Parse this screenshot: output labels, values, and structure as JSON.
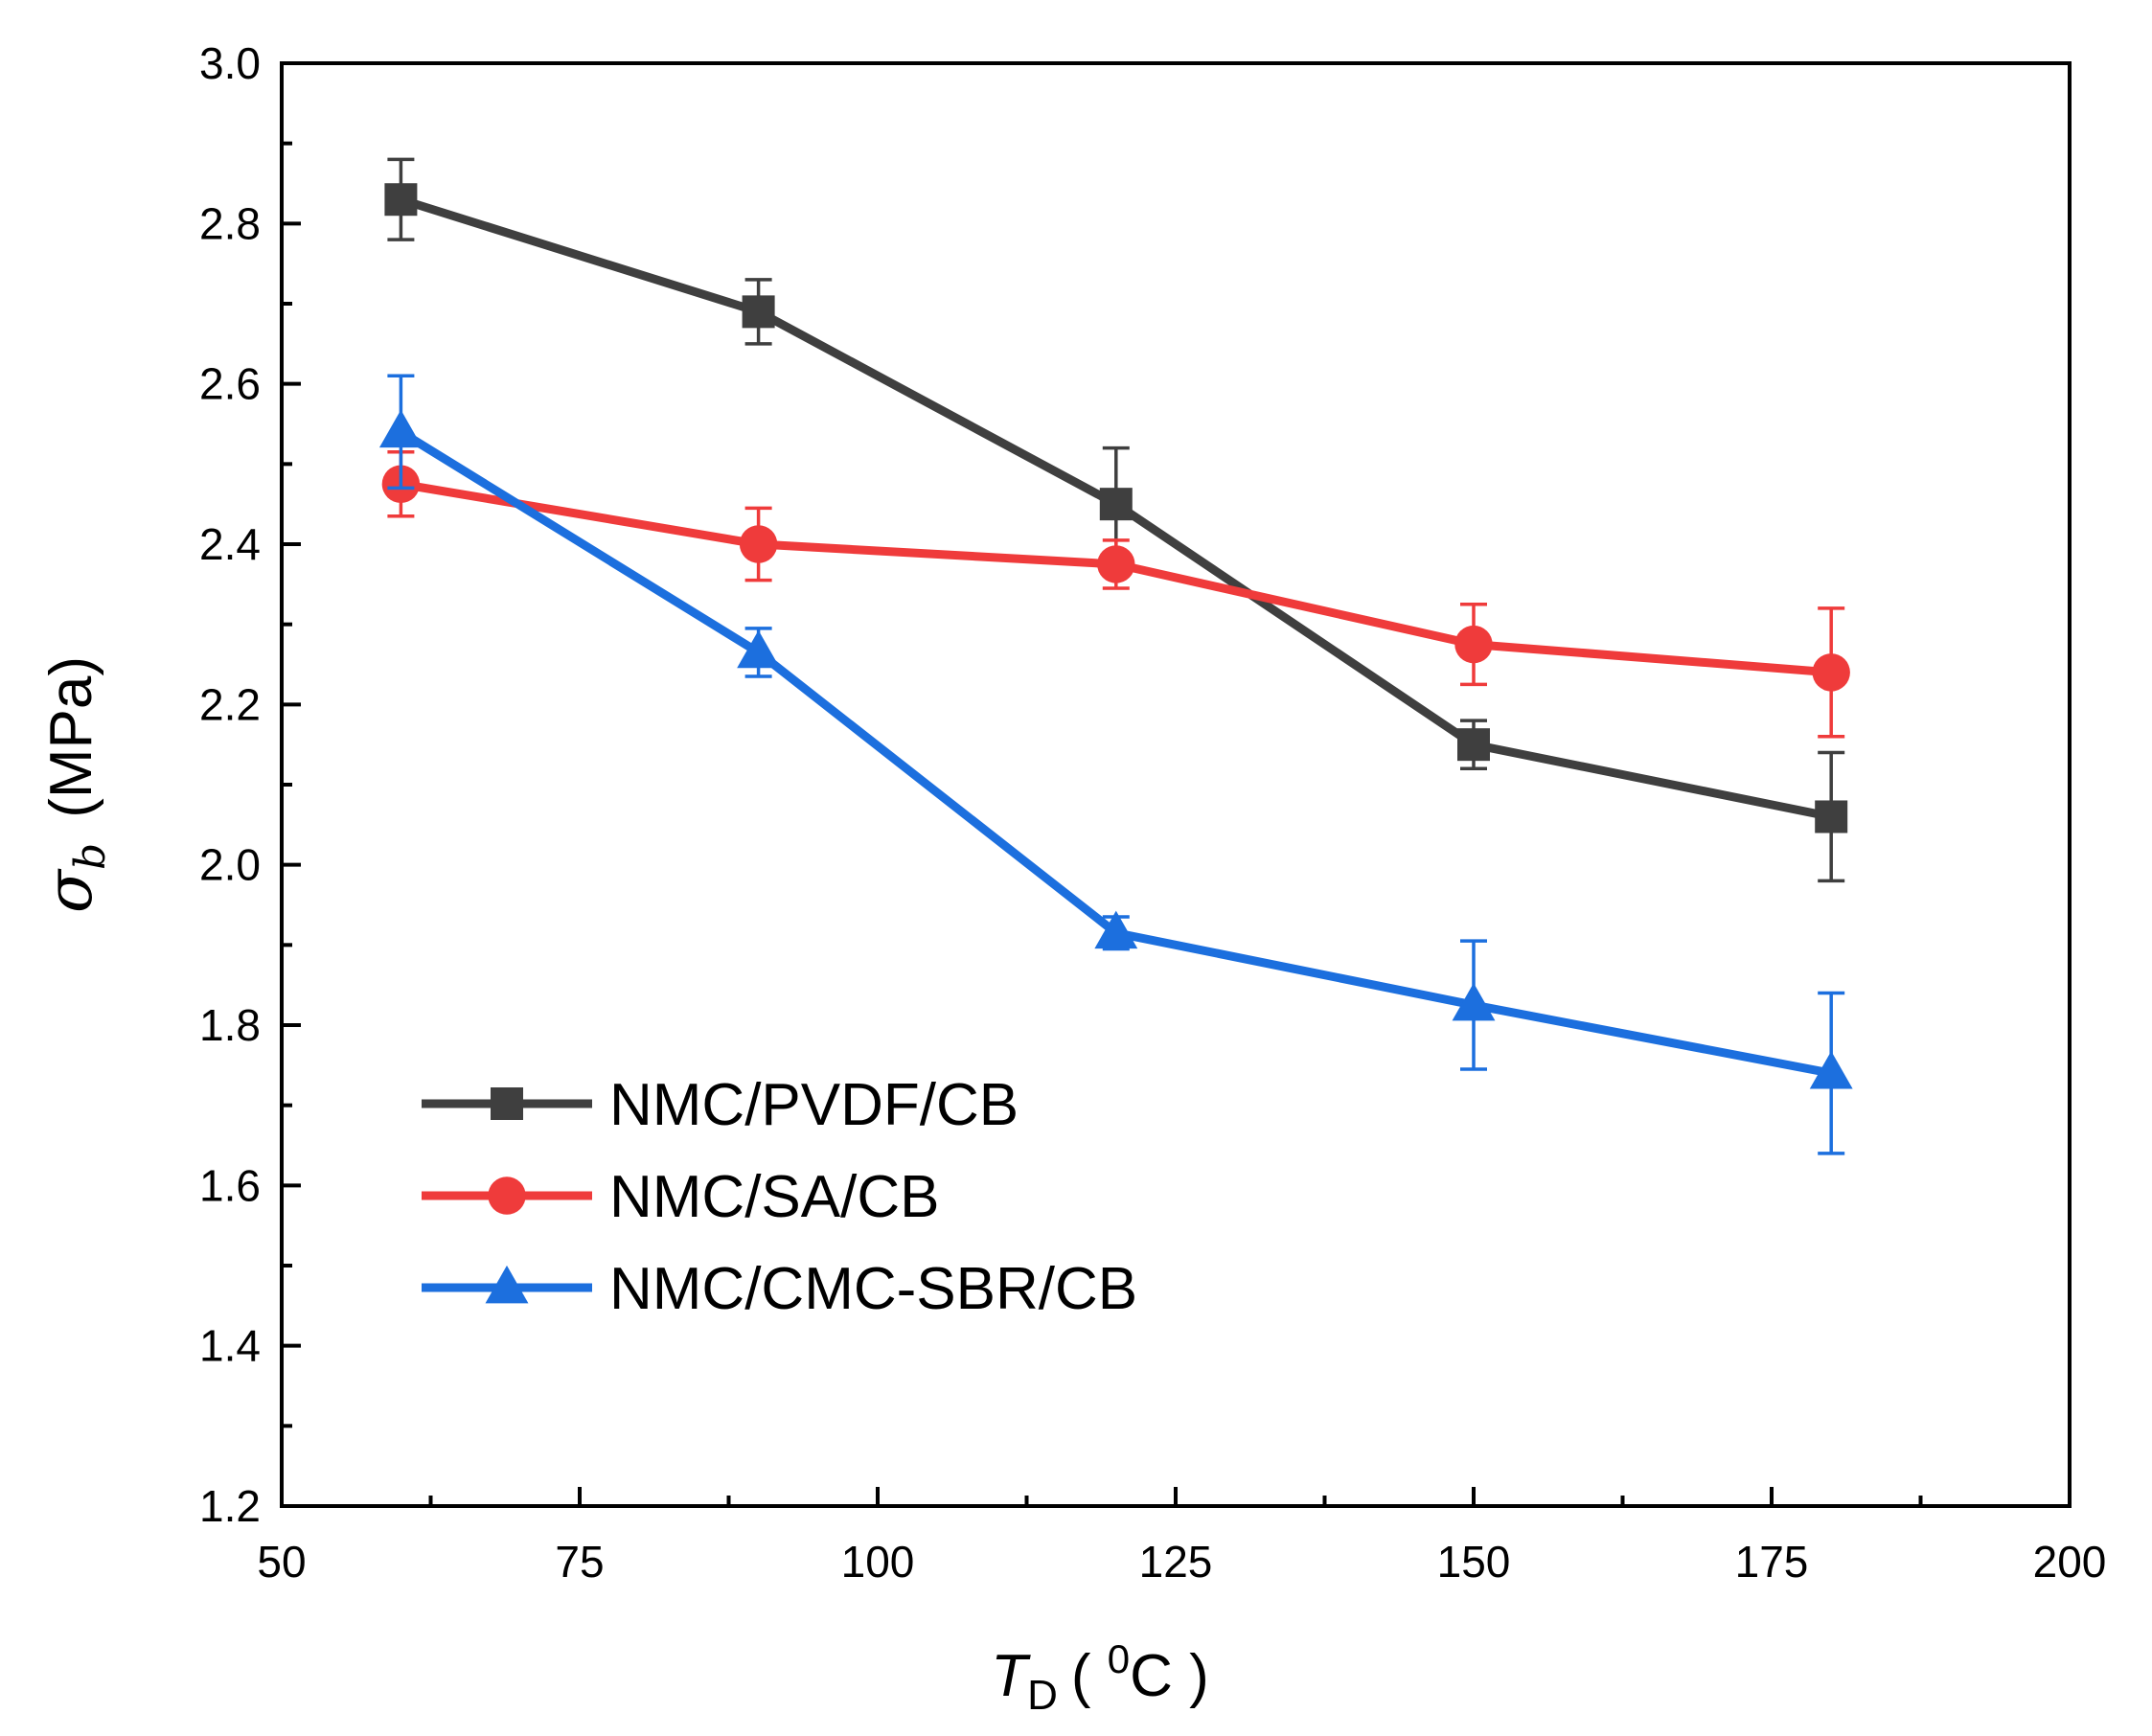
{
  "chart_data": {
    "type": "line",
    "title": "",
    "x": [
      60,
      90,
      120,
      150,
      180
    ],
    "xlim": [
      50,
      200
    ],
    "ylim": [
      1.2,
      3.0
    ],
    "xticks": [
      "50",
      "75",
      "100",
      "125",
      "150",
      "175",
      "200"
    ],
    "yticks": [
      "1.2",
      "1.4",
      "1.6",
      "1.8",
      "2.0",
      "2.2",
      "2.4",
      "2.6",
      "2.8",
      "3.0"
    ],
    "xlabel": {
      "symbol": "T",
      "subscript": "D",
      "open": "( ",
      "superscript": "0",
      "unit": "C",
      "close": " )"
    },
    "ylabel": {
      "symbol": "σ",
      "subscript": "b",
      "unit": "(MPa)"
    },
    "grid": false,
    "legend_position": "bottom-left",
    "series": [
      {
        "name": "NMC/PVDF/CB",
        "color": "#3f3f3f",
        "marker": "square",
        "values": [
          2.83,
          2.69,
          2.45,
          2.15,
          2.06
        ],
        "errors": [
          0.05,
          0.04,
          0.07,
          0.03,
          0.08
        ]
      },
      {
        "name": "NMC/SA/CB",
        "color": "#ef3b3b",
        "marker": "circle",
        "values": [
          2.475,
          2.4,
          2.375,
          2.275,
          2.24
        ],
        "errors": [
          0.04,
          0.045,
          0.03,
          0.05,
          0.08
        ]
      },
      {
        "name": "NMC/CMC-SBR/CB",
        "color": "#1c6fde",
        "marker": "triangle",
        "values": [
          2.54,
          2.265,
          1.915,
          1.825,
          1.74
        ],
        "errors": [
          0.07,
          0.03,
          0.02,
          0.08,
          0.1
        ]
      }
    ]
  }
}
